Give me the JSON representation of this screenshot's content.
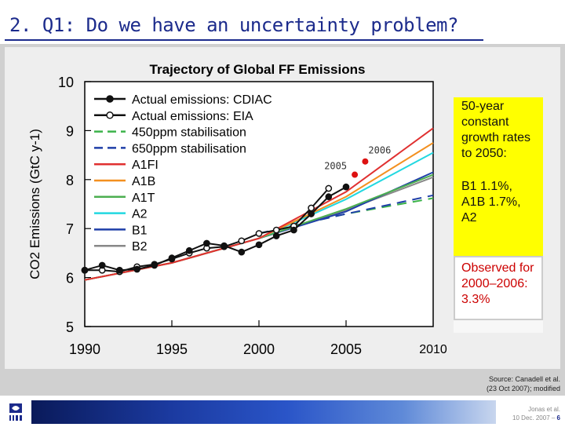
{
  "slide": {
    "title": "2. Q1: Do we have an uncertainty problem?",
    "source_line1": "Source: Canadell et al.",
    "source_line2": "(23 Oct 2007); modified",
    "footer_author": "Jonas et al.",
    "footer_date": "10 Dec. 2007 –",
    "footer_page": "6",
    "logo_name": "iiasa-logo"
  },
  "annotation": {
    "growth_text": "50-year constant growth rates to 2050:",
    "rates_text": "B1 1.1%, A1B 1.7%, A2",
    "observed_text": "Observed for 2000–2006:",
    "observed_value": "3.3%"
  },
  "chart_data": {
    "type": "line",
    "title": "Trajectory of Global FF Emissions",
    "xlabel": "",
    "ylabel": "CO2 Emissions (GtC y-1)",
    "xlim": [
      1990,
      2010
    ],
    "ylim": [
      5,
      10
    ],
    "x_ticks": [
      1990,
      1995,
      2000,
      2005
    ],
    "x_tick_outside": "2010",
    "y_ticks": [
      5,
      6,
      7,
      8,
      9,
      10
    ],
    "grid": false,
    "legend_position": "top-left",
    "series": [
      {
        "name": "Actual emissions: CDIAC",
        "color": "#111111",
        "style": "solid",
        "marker": "filled-circle",
        "x": [
          1990,
          1991,
          1992,
          1993,
          1994,
          1995,
          1996,
          1997,
          1998,
          1999,
          2000,
          2001,
          2002,
          2003,
          2004,
          2005
        ],
        "y": [
          6.15,
          6.25,
          6.15,
          6.17,
          6.25,
          6.4,
          6.55,
          6.7,
          6.65,
          6.52,
          6.67,
          6.85,
          6.97,
          7.3,
          7.65,
          7.85
        ]
      },
      {
        "name": "Actual emissions: EIA",
        "color": "#111111",
        "style": "solid",
        "marker": "open-circle",
        "x": [
          1990,
          1991,
          1992,
          1993,
          1994,
          1995,
          1996,
          1997,
          1998,
          1999,
          2000,
          2001,
          2002,
          2003,
          2004
        ],
        "y": [
          6.15,
          6.15,
          6.12,
          6.22,
          6.27,
          6.38,
          6.5,
          6.6,
          6.63,
          6.75,
          6.9,
          6.97,
          7.05,
          7.42,
          7.82
        ]
      },
      {
        "name": "450ppm stabilisation",
        "color": "#3cb34a",
        "style": "dashed",
        "x": [
          2000,
          2005,
          2010
        ],
        "y": [
          6.9,
          7.3,
          7.62
        ]
      },
      {
        "name": "650ppm stabilisation",
        "color": "#1f3fa8",
        "style": "dashed",
        "x": [
          2000,
          2005,
          2010
        ],
        "y": [
          6.9,
          7.3,
          7.68
        ]
      },
      {
        "name": "A1FI",
        "color": "#e03030",
        "style": "solid",
        "x": [
          1990,
          1995,
          2000,
          2005,
          2010
        ],
        "y": [
          5.95,
          6.3,
          6.8,
          7.75,
          9.05
        ]
      },
      {
        "name": "A1B",
        "color": "#f39020",
        "style": "solid",
        "x": [
          1990,
          1995,
          2000,
          2005,
          2010
        ],
        "y": [
          5.95,
          6.3,
          6.8,
          7.65,
          8.75
        ]
      },
      {
        "name": "A1T",
        "color": "#4caf50",
        "style": "solid",
        "x": [
          1990,
          1995,
          2000,
          2005,
          2010
        ],
        "y": [
          5.95,
          6.3,
          6.8,
          7.4,
          8.1
        ]
      },
      {
        "name": "A2",
        "color": "#22d8e0",
        "style": "solid",
        "x": [
          1990,
          1995,
          2000,
          2005,
          2010
        ],
        "y": [
          5.95,
          6.3,
          6.8,
          7.6,
          8.55
        ]
      },
      {
        "name": "B1",
        "color": "#1f3fa8",
        "style": "solid",
        "x": [
          1990,
          1995,
          2000,
          2005,
          2010
        ],
        "y": [
          5.95,
          6.3,
          6.8,
          7.35,
          8.15
        ]
      },
      {
        "name": "B2",
        "color": "#888888",
        "style": "solid",
        "x": [
          1990,
          1995,
          2000,
          2005,
          2010
        ],
        "y": [
          5.95,
          6.3,
          6.8,
          7.38,
          8.05
        ]
      }
    ],
    "highlight_points": [
      {
        "label": "2005",
        "x": 2005.5,
        "y": 8.1,
        "color": "#dd1111"
      },
      {
        "label": "2006",
        "x": 2006.1,
        "y": 8.37,
        "color": "#dd1111"
      }
    ]
  }
}
